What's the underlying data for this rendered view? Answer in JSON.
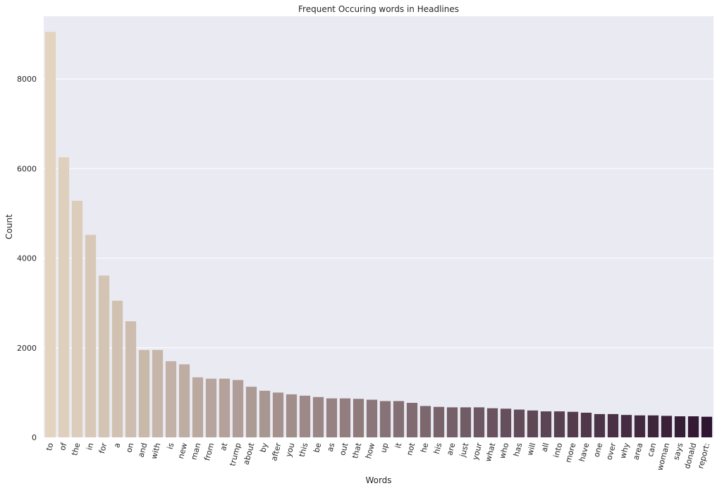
{
  "chart_data": {
    "type": "bar",
    "title": "Frequent Occuring words in Headlines",
    "xlabel": "Words",
    "ylabel": "Count",
    "ylim": [
      0,
      9400
    ],
    "yticks": [
      0,
      2000,
      4000,
      6000,
      8000
    ],
    "grid": "horizontal",
    "categories": [
      "to",
      "of",
      "the",
      "in",
      "for",
      "a",
      "on",
      "and",
      "with",
      "is",
      "new",
      "man",
      "from",
      "at",
      "trump",
      "about",
      "by",
      "after",
      "you",
      "this",
      "be",
      "as",
      "out",
      "that",
      "how",
      "up",
      "it",
      "not",
      "he",
      "his",
      "are",
      "just",
      "your",
      "what",
      "who",
      "has",
      "will",
      "all",
      "into",
      "more",
      "have",
      "one",
      "over",
      "why",
      "area",
      "can",
      "woman",
      "says",
      "donald",
      "report:"
    ],
    "values": [
      9050,
      6250,
      5280,
      4520,
      3610,
      3050,
      2590,
      1950,
      1950,
      1700,
      1630,
      1340,
      1310,
      1310,
      1280,
      1130,
      1040,
      1000,
      960,
      930,
      900,
      870,
      870,
      860,
      840,
      810,
      810,
      770,
      700,
      680,
      670,
      670,
      670,
      650,
      640,
      620,
      600,
      580,
      580,
      570,
      550,
      520,
      520,
      500,
      490,
      490,
      480,
      470,
      470,
      460
    ],
    "color_start": "#e3d4c0",
    "color_end": "#2f1530"
  },
  "style": {
    "plot_background": "#eaeaf2",
    "grid_color": "#ffffff"
  }
}
